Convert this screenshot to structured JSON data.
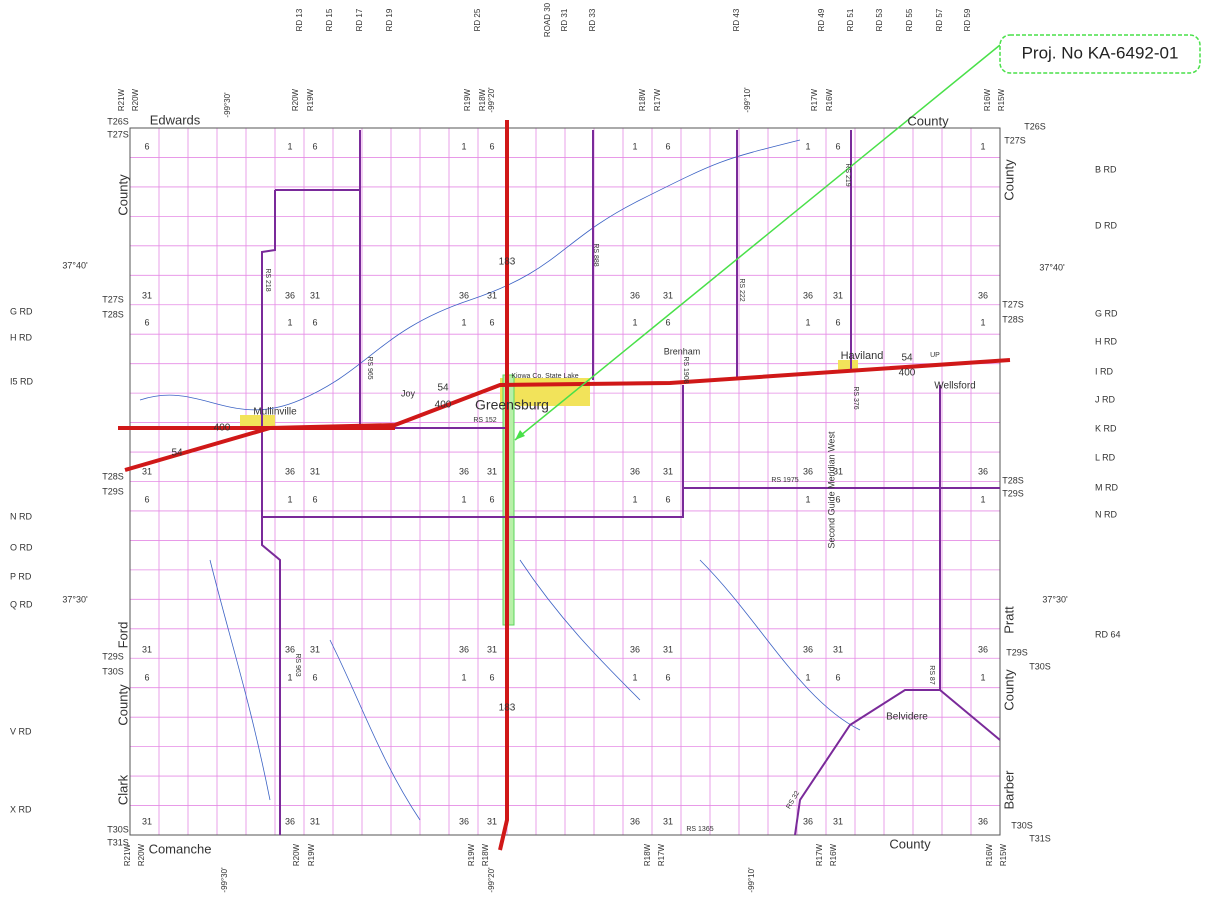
{
  "project": "Proj. No KA-6492-01",
  "top_roads": [
    "RD 13",
    "RD 15",
    "RD 17",
    "RD 19",
    "RD 25",
    "ROAD 30",
    "RD 31",
    "RD 33",
    "RD 43",
    "RD 49",
    "RD 51",
    "RD 53",
    "RD 55",
    "RD 57",
    "RD 59"
  ],
  "left_roads": [
    "G RD",
    "H RD",
    "I5 RD",
    "N RD",
    "O RD",
    "P RD",
    "Q RD",
    "V RD",
    "X RD"
  ],
  "right_roads": [
    "B RD",
    "D RD",
    "G RD",
    "H RD",
    "I RD",
    "J RD",
    "K RD",
    "L RD",
    "M RD",
    "N RD",
    "RD 64"
  ],
  "counties": [
    "Edwards",
    "County",
    "County",
    "County",
    "Ford",
    "County",
    "Clark",
    "Comanche",
    "County",
    "Pratt",
    "County",
    "Barber"
  ],
  "towns": [
    "Mullinville",
    "Joy",
    "Greensburg",
    "Brenham",
    "Haviland",
    "Wellsford",
    "Belvidere"
  ],
  "latitudes": [
    "37°40'",
    "37°40'",
    "37°30'",
    "37°30'"
  ],
  "longitudes": [
    "-99°30'",
    "-99°20'",
    "-99°10'",
    "-99°30'",
    "-99°20'",
    "-99°10'"
  ],
  "route_shields": [
    "183",
    "183",
    "54",
    "400",
    "400",
    "54",
    "54",
    "400"
  ],
  "townships": [
    "T26S",
    "T27S",
    "T27S",
    "T28S",
    "T28S",
    "T29S",
    "T29S",
    "T30S",
    "T30S",
    "T31S",
    "T26S",
    "T27S",
    "T27S",
    "T28S",
    "T28S",
    "T29S",
    "T29S",
    "T30S",
    "T30S",
    "T31S"
  ],
  "ranges": [
    "R21W",
    "R20W",
    "R20W",
    "R19W",
    "R19W",
    "R18W",
    "R18W",
    "R17W",
    "R17W",
    "R16W",
    "R16W",
    "R15W",
    "R21W",
    "R20W",
    "R20W",
    "R19W",
    "R19W",
    "R18W",
    "R18W",
    "R17W",
    "R17W",
    "R16W",
    "R16W",
    "R15W"
  ],
  "route_labels": [
    "RS 218",
    "RS 965",
    "RS 888",
    "RS 222",
    "RS 219",
    "RS 1975",
    "RS 376",
    "RS 963",
    "RS 87",
    "RS 32",
    "RS 1365",
    "RS 1908",
    "RS 152",
    "UP"
  ],
  "features": [
    "Kiowa Co. State Lake",
    "Second Guide Meridian West"
  ],
  "section_rows": [
    [
      6,
      1,
      6,
      1,
      6,
      1,
      6,
      1,
      6,
      1
    ],
    [
      31,
      36,
      31,
      36,
      31,
      36,
      31,
      36,
      31,
      36
    ],
    [
      6,
      1,
      6,
      1,
      6,
      1,
      6,
      1,
      6,
      1
    ],
    [
      31,
      36,
      31,
      36,
      31,
      36,
      31,
      36,
      31,
      36
    ],
    [
      6,
      1,
      6,
      1,
      6,
      1,
      6,
      1,
      6,
      1
    ],
    [
      31,
      36,
      31,
      36,
      31,
      36,
      31,
      36,
      31,
      36
    ],
    [
      6,
      1,
      6,
      1,
      6,
      1,
      6,
      1,
      6,
      1
    ],
    [
      31,
      36,
      31,
      36,
      31,
      36,
      31,
      36,
      31,
      36
    ]
  ]
}
